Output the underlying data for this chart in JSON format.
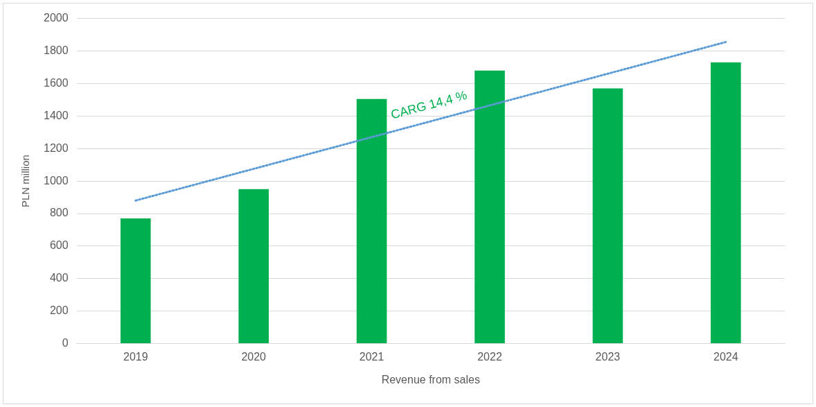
{
  "chart_data": {
    "type": "bar",
    "xlabel": "Revenue from sales",
    "ylabel": "PLN million",
    "categories": [
      "2019",
      "2020",
      "2021",
      "2022",
      "2023",
      "2024"
    ],
    "series": [
      {
        "color": "#00b050",
        "values": [
          770,
          950,
          1505,
          1680,
          1570,
          1730
        ]
      },
      {
        "type": "line",
        "color": "#5b9bd5",
        "values": [
          880,
          null,
          null,
          null,
          null,
          1855
        ],
        "line_style": "dotted",
        "marker": "none"
      }
    ],
    "ylim": [
      0,
      2000
    ],
    "yticks": [
      0,
      200,
      400,
      600,
      800,
      1000,
      1200,
      1400,
      1600,
      1800,
      2000
    ],
    "grid": "y",
    "legend": false,
    "annotations": [
      "CARG 14,4 %"
    ]
  }
}
